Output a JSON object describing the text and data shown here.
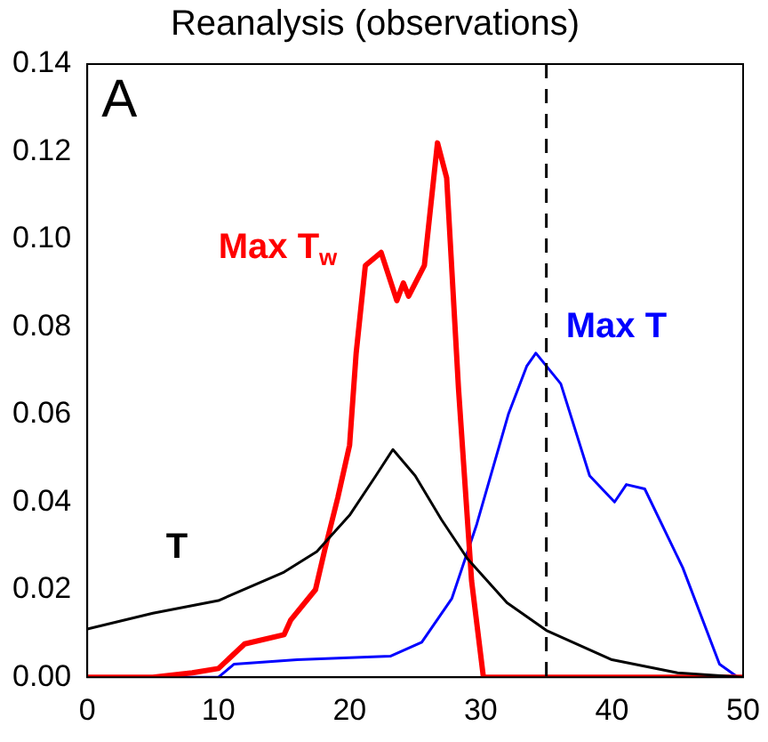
{
  "chart_data": {
    "type": "line",
    "title": "Reanalysis (observations)",
    "annotations": [
      "A"
    ],
    "xlim": [
      0,
      50
    ],
    "xticks": [
      0,
      10,
      20,
      30,
      40,
      50
    ],
    "ylim": [
      0,
      0.14
    ],
    "yticks": [
      {
        "value": 0,
        "label": "0.00"
      },
      0.02,
      0.04,
      0.06,
      0.08,
      {
        "value": 0.1,
        "label": "0.10"
      },
      0.12,
      0.14
    ],
    "grid": false,
    "legend": false,
    "marker": "none",
    "line_style": "solid",
    "ref_lines": [
      {
        "axis": "x",
        "value": 35,
        "color": "#000000",
        "line_style": "dashed"
      }
    ],
    "series": [
      {
        "name": "T",
        "color": "#000000",
        "x": [
          0,
          5,
          10,
          15,
          17.5,
          20,
          22,
          23.3,
          25,
          27,
          29,
          32,
          35,
          40,
          45,
          50
        ],
        "values": [
          0.011,
          0.0146,
          0.0175,
          0.024,
          0.0287,
          0.037,
          0.046,
          0.052,
          0.046,
          0.036,
          0.027,
          0.017,
          0.0107,
          0.004,
          0.001,
          0
        ]
      },
      {
        "name": "Max T$_{w}$",
        "color": "#ff0000",
        "x": [
          0,
          5,
          8,
          10,
          12,
          15,
          15.5,
          17.4,
          18.1,
          19.1,
          20,
          20.5,
          21.2,
          22.4,
          23.6,
          24.1,
          24.5,
          25.7,
          26.7,
          27.4,
          28.3,
          29.3,
          30.2,
          35,
          40,
          50
        ],
        "values": [
          0,
          0,
          0.001,
          0.002,
          0.0076,
          0.0097,
          0.013,
          0.02,
          0.029,
          0.041,
          0.053,
          0.074,
          0.094,
          0.097,
          0.086,
          0.09,
          0.087,
          0.094,
          0.122,
          0.114,
          0.066,
          0.022,
          0,
          0,
          0,
          0
        ]
      },
      {
        "name": "Max T",
        "color": "#0000ff",
        "x": [
          0,
          10,
          11.2,
          16,
          23.1,
          25.5,
          27.8,
          29.7,
          32.1,
          33.5,
          34.2,
          36.1,
          38.3,
          40.2,
          41.1,
          42.5,
          45.4,
          48.2,
          49.6,
          50
        ],
        "values": [
          0,
          0,
          0.003,
          0.004,
          0.0048,
          0.008,
          0.018,
          0.035,
          0.06,
          0.071,
          0.074,
          0.067,
          0.046,
          0.04,
          0.044,
          0.043,
          0.025,
          0.003,
          0,
          0
        ]
      }
    ]
  }
}
